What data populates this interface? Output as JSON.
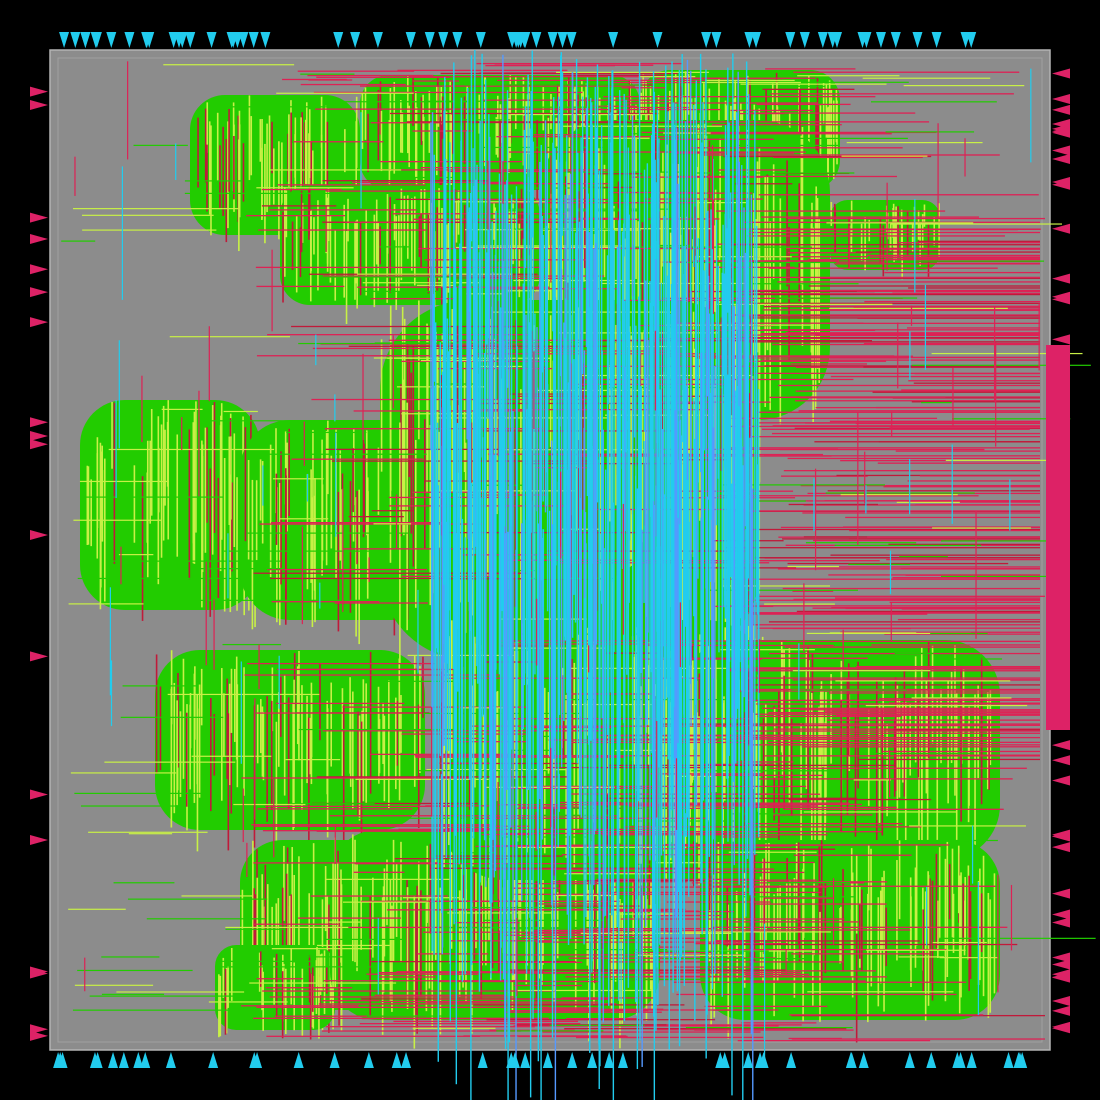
{
  "view": {
    "background": "#000000",
    "die_fill": "#8c8c8c",
    "die_outline": "#b4b4b4",
    "colors": {
      "cell_metal": "#22cc00",
      "metal_yellow": "#c8f046",
      "route_red": "#dd2255",
      "route_red_dark": "#c01a3a",
      "route_cyan": "#22ccee",
      "route_blue": "#5599ff",
      "pin_cyan": "#22ccee",
      "pin_magenta": "#dd2266"
    },
    "layers": [
      {
        "name": "placed-cells",
        "color_key": "cell_metal"
      },
      {
        "name": "metal-horizontal",
        "color_key": "route_red"
      },
      {
        "name": "metal-vertical",
        "color_key": "route_cyan"
      },
      {
        "name": "metal-filler",
        "color_key": "metal_yellow"
      }
    ],
    "pins": {
      "top_count": 60,
      "bottom_count": 45,
      "left_count": 18,
      "right_count": 60
    }
  }
}
